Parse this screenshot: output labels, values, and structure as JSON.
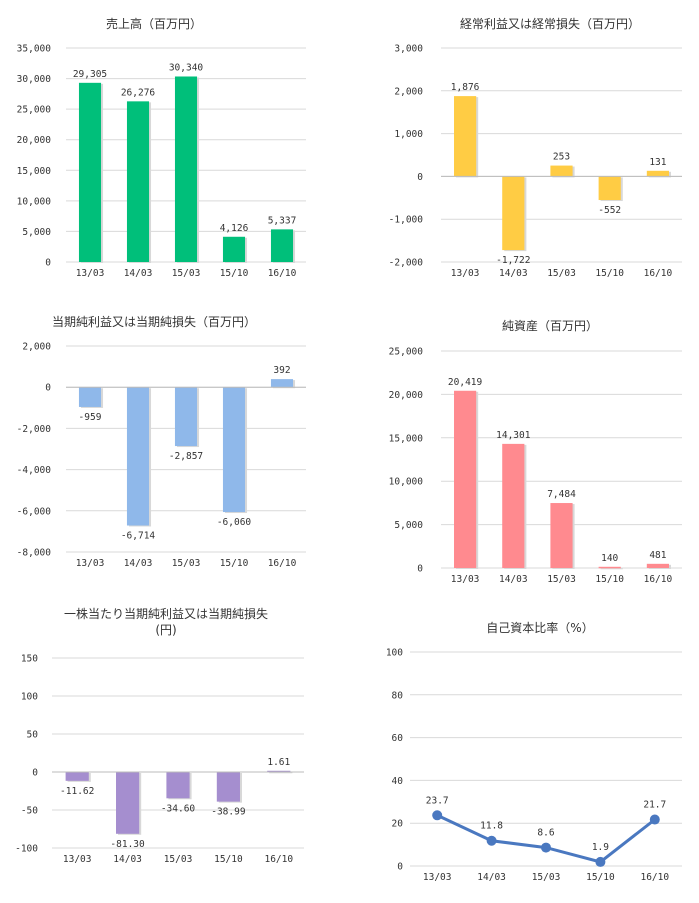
{
  "colors": {
    "green": "#00bf7a",
    "yellow": "#ffcc44",
    "blue": "#8fb8ea",
    "pink": "#ff8a8f",
    "purple": "#a58ecf",
    "line": "#4a78c0"
  },
  "chart_data": [
    {
      "id": "sales",
      "type": "bar",
      "title": "売上高（百万円）",
      "categories": [
        "13/03",
        "14/03",
        "15/03",
        "15/10",
        "16/10"
      ],
      "values": [
        29305,
        26276,
        30340,
        4126,
        5337
      ],
      "value_labels": [
        "29,305",
        "26,276",
        "30,340",
        "4,126",
        "5,337"
      ],
      "ylim": [
        0,
        35000
      ],
      "yticks": [
        0,
        5000,
        10000,
        15000,
        20000,
        25000,
        30000,
        35000
      ],
      "ytick_labels": [
        "0",
        "5,000",
        "10,000",
        "15,000",
        "20,000",
        "25,000",
        "30,000",
        "35,000"
      ],
      "color": "#00bf7a",
      "grid": true
    },
    {
      "id": "ordinary-income",
      "type": "bar",
      "title": "経常利益又は経常損失（百万円）",
      "categories": [
        "13/03",
        "14/03",
        "15/03",
        "15/10",
        "16/10"
      ],
      "values": [
        1876,
        -1722,
        253,
        -552,
        131
      ],
      "value_labels": [
        "1,876",
        "-1,722",
        "253",
        "-552",
        "131"
      ],
      "ylim": [
        -2000,
        3000
      ],
      "yticks": [
        -2000,
        -1000,
        0,
        1000,
        2000,
        3000
      ],
      "ytick_labels": [
        "-2,000",
        "-1,000",
        "0",
        "1,000",
        "2,000",
        "3,000"
      ],
      "color": "#ffcc44",
      "grid": true
    },
    {
      "id": "net-income",
      "type": "bar",
      "title": "当期純利益又は当期純損失（百万円）",
      "categories": [
        "13/03",
        "14/03",
        "15/03",
        "15/10",
        "16/10"
      ],
      "values": [
        -959,
        -6714,
        -2857,
        -6060,
        392
      ],
      "value_labels": [
        "-959",
        "-6,714",
        "-2,857",
        "-6,060",
        "392"
      ],
      "ylim": [
        -8000,
        2000
      ],
      "yticks": [
        -8000,
        -6000,
        -4000,
        -2000,
        0,
        2000
      ],
      "ytick_labels": [
        "-8,000",
        "-6,000",
        "-4,000",
        "-2,000",
        "0",
        "2,000"
      ],
      "color": "#8fb8ea",
      "grid": true
    },
    {
      "id": "net-assets",
      "type": "bar",
      "title": "純資産（百万円）",
      "categories": [
        "13/03",
        "14/03",
        "15/03",
        "15/10",
        "16/10"
      ],
      "values": [
        20419,
        14301,
        7484,
        140,
        481
      ],
      "value_labels": [
        "20,419",
        "14,301",
        "7,484",
        "140",
        "481"
      ],
      "ylim": [
        0,
        25000
      ],
      "yticks": [
        0,
        5000,
        10000,
        15000,
        20000,
        25000
      ],
      "ytick_labels": [
        "0",
        "5,000",
        "10,000",
        "15,000",
        "20,000",
        "25,000"
      ],
      "color": "#ff8a8f",
      "grid": true
    },
    {
      "id": "eps",
      "type": "bar",
      "title": "一株当たり当期純利益又は当期純損失",
      "subtitle": "(円)",
      "categories": [
        "13/03",
        "14/03",
        "15/03",
        "15/10",
        "16/10"
      ],
      "values": [
        -11.62,
        -81.3,
        -34.6,
        -38.99,
        1.61
      ],
      "value_labels": [
        "-11.62",
        "-81.30",
        "-34.60",
        "-38.99",
        "1.61"
      ],
      "ylim": [
        -100,
        150
      ],
      "yticks": [
        -100,
        -50,
        0,
        50,
        100,
        150
      ],
      "ytick_labels": [
        "-100",
        "-50",
        "0",
        "50",
        "100",
        "150"
      ],
      "color": "#a58ecf",
      "grid": true
    },
    {
      "id": "equity-ratio",
      "type": "line",
      "title": "自己資本比率（%）",
      "categories": [
        "13/03",
        "14/03",
        "15/03",
        "15/10",
        "16/10"
      ],
      "values": [
        23.7,
        11.8,
        8.6,
        1.9,
        21.7
      ],
      "value_labels": [
        "23.7",
        "11.8",
        "8.6",
        "1.9",
        "21.7"
      ],
      "ylim": [
        0,
        100
      ],
      "yticks": [
        0,
        20,
        40,
        60,
        80,
        100
      ],
      "ytick_labels": [
        "0",
        "20",
        "40",
        "60",
        "80",
        "100"
      ],
      "color": "#4a78c0",
      "grid": true
    }
  ]
}
